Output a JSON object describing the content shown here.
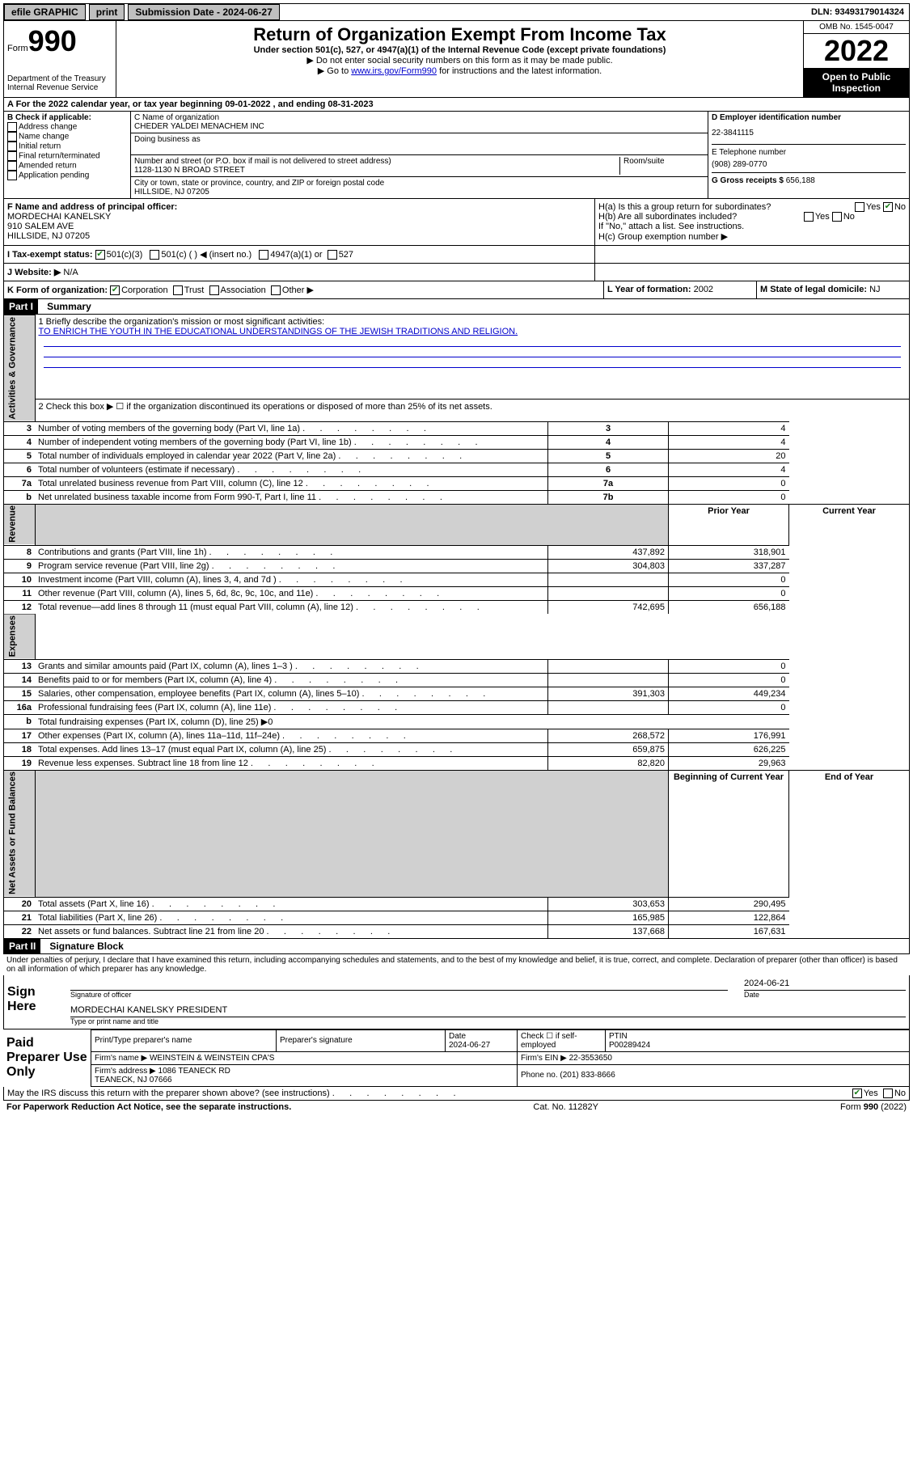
{
  "topbar": {
    "efile": "efile GRAPHIC",
    "print": "print",
    "sub_label": "Submission Date - 2024-06-27",
    "dln": "DLN: 93493179014324"
  },
  "header": {
    "form_small": "Form",
    "form_num": "990",
    "dept": "Department of the Treasury\nInternal Revenue Service",
    "title": "Return of Organization Exempt From Income Tax",
    "subtitle": "Under section 501(c), 527, or 4947(a)(1) of the Internal Revenue Code (except private foundations)",
    "note1": "▶ Do not enter social security numbers on this form as it may be made public.",
    "note2_pre": "▶ Go to ",
    "note2_link": "www.irs.gov/Form990",
    "note2_post": " for instructions and the latest information.",
    "omb": "OMB No. 1545-0047",
    "year": "2022",
    "open": "Open to Public Inspection"
  },
  "section_a": "A For the 2022 calendar year, or tax year beginning 09-01-2022    , and ending 08-31-2023",
  "col_b": {
    "label": "B Check if applicable:",
    "items": [
      "Address change",
      "Name change",
      "Initial return",
      "Final return/terminated",
      "Amended return",
      "Application pending"
    ]
  },
  "col_c": {
    "name_label": "C Name of organization",
    "name": "CHEDER YALDEI MENACHEM INC",
    "dba_label": "Doing business as",
    "addr_label": "Number and street (or P.O. box if mail is not delivered to street address)",
    "suite_label": "Room/suite",
    "addr": "1128-1130 N BROAD STREET",
    "city_label": "City or town, state or province, country, and ZIP or foreign postal code",
    "city": "HILLSIDE, NJ  07205"
  },
  "col_d": {
    "ein_label": "D Employer identification number",
    "ein": "22-3841115",
    "phone_label": "E Telephone number",
    "phone": "(908) 289-0770",
    "gross_label": "G Gross receipts $",
    "gross": "656,188"
  },
  "row_f": {
    "label": "F Name and address of principal officer:",
    "name": "MORDECHAI KANELSKY",
    "addr": "910 SALEM AVE",
    "city": "HILLSIDE, NJ  07205"
  },
  "row_h": {
    "ha": "H(a)  Is this a group return for subordinates?",
    "hb": "H(b)  Are all subordinates included?",
    "hnote": "If \"No,\" attach a list. See instructions.",
    "hc": "H(c)  Group exemption number ▶",
    "yes": "Yes",
    "no": "No"
  },
  "row_i": {
    "label": "I    Tax-exempt status:",
    "opts": [
      "501(c)(3)",
      "501(c) (  ) ◀ (insert no.)",
      "4947(a)(1) or",
      "527"
    ]
  },
  "row_j": {
    "label": "J   Website: ▶",
    "val": "N/A"
  },
  "row_k": {
    "label": "K Form of organization:",
    "opts": [
      "Corporation",
      "Trust",
      "Association",
      "Other ▶"
    ]
  },
  "row_l": {
    "label": "L Year of formation:",
    "val": "2002"
  },
  "row_m": {
    "label": "M State of legal domicile:",
    "val": "NJ"
  },
  "part1": {
    "header": "Part I",
    "title": "Summary",
    "line1_label": "1   Briefly describe the organization's mission or most significant activities:",
    "line1_val": "TO ENRICH THE YOUTH IN THE EDUCATIONAL UNDERSTANDINGS OF THE JEWISH TRADITIONS AND RELIGION.",
    "line2": "2   Check this box ▶ ☐  if the organization discontinued its operations or disposed of more than 25% of its net assets.",
    "gov_label": "Activities & Governance",
    "rev_label": "Revenue",
    "exp_label": "Expenses",
    "net_label": "Net Assets or Fund Balances",
    "prior_hdr": "Prior Year",
    "current_hdr": "Current Year",
    "begin_hdr": "Beginning of Current Year",
    "end_hdr": "End of Year",
    "rows_gov": [
      {
        "n": "3",
        "t": "Number of voting members of the governing body (Part VI, line 1a)",
        "box": "3",
        "v": "4"
      },
      {
        "n": "4",
        "t": "Number of independent voting members of the governing body (Part VI, line 1b)",
        "box": "4",
        "v": "4"
      },
      {
        "n": "5",
        "t": "Total number of individuals employed in calendar year 2022 (Part V, line 2a)",
        "box": "5",
        "v": "20"
      },
      {
        "n": "6",
        "t": "Total number of volunteers (estimate if necessary)",
        "box": "6",
        "v": "4"
      },
      {
        "n": "7a",
        "t": "Total unrelated business revenue from Part VIII, column (C), line 12",
        "box": "7a",
        "v": "0"
      },
      {
        "n": "b",
        "t": "Net unrelated business taxable income from Form 990-T, Part I, line 11",
        "box": "7b",
        "v": "0"
      }
    ],
    "rows_rev": [
      {
        "n": "8",
        "t": "Contributions and grants (Part VIII, line 1h)",
        "p": "437,892",
        "c": "318,901"
      },
      {
        "n": "9",
        "t": "Program service revenue (Part VIII, line 2g)",
        "p": "304,803",
        "c": "337,287"
      },
      {
        "n": "10",
        "t": "Investment income (Part VIII, column (A), lines 3, 4, and 7d )",
        "p": "",
        "c": "0"
      },
      {
        "n": "11",
        "t": "Other revenue (Part VIII, column (A), lines 5, 6d, 8c, 9c, 10c, and 11e)",
        "p": "",
        "c": "0"
      },
      {
        "n": "12",
        "t": "Total revenue—add lines 8 through 11 (must equal Part VIII, column (A), line 12)",
        "p": "742,695",
        "c": "656,188"
      }
    ],
    "rows_exp": [
      {
        "n": "13",
        "t": "Grants and similar amounts paid (Part IX, column (A), lines 1–3 )",
        "p": "",
        "c": "0"
      },
      {
        "n": "14",
        "t": "Benefits paid to or for members (Part IX, column (A), line 4)",
        "p": "",
        "c": "0"
      },
      {
        "n": "15",
        "t": "Salaries, other compensation, employee benefits (Part IX, column (A), lines 5–10)",
        "p": "391,303",
        "c": "449,234"
      },
      {
        "n": "16a",
        "t": "Professional fundraising fees (Part IX, column (A), line 11e)",
        "p": "",
        "c": "0"
      },
      {
        "n": "b",
        "t": "Total fundraising expenses (Part IX, column (D), line 25) ▶0",
        "p": "—",
        "c": "—"
      },
      {
        "n": "17",
        "t": "Other expenses (Part IX, column (A), lines 11a–11d, 11f–24e)",
        "p": "268,572",
        "c": "176,991"
      },
      {
        "n": "18",
        "t": "Total expenses. Add lines 13–17 (must equal Part IX, column (A), line 25)",
        "p": "659,875",
        "c": "626,225"
      },
      {
        "n": "19",
        "t": "Revenue less expenses. Subtract line 18 from line 12",
        "p": "82,820",
        "c": "29,963"
      }
    ],
    "rows_net": [
      {
        "n": "20",
        "t": "Total assets (Part X, line 16)",
        "p": "303,653",
        "c": "290,495"
      },
      {
        "n": "21",
        "t": "Total liabilities (Part X, line 26)",
        "p": "165,985",
        "c": "122,864"
      },
      {
        "n": "22",
        "t": "Net assets or fund balances. Subtract line 21 from line 20",
        "p": "137,668",
        "c": "167,631"
      }
    ]
  },
  "part2": {
    "header": "Part II",
    "title": "Signature Block",
    "penalty": "Under penalties of perjury, I declare that I have examined this return, including accompanying schedules and statements, and to the best of my knowledge and belief, it is true, correct, and complete. Declaration of preparer (other than officer) is based on all information of which preparer has any knowledge.",
    "sign_here": "Sign Here",
    "sig_officer": "Signature of officer",
    "date_label": "Date",
    "sig_date": "2024-06-21",
    "officer_name": "MORDECHAI KANELSKY PRESIDENT",
    "type_name": "Type or print name and title",
    "paid": "Paid Preparer Use Only",
    "prep_name_label": "Print/Type preparer's name",
    "prep_sig_label": "Preparer's signature",
    "prep_date": "Date\n2024-06-27",
    "self_emp": "Check ☐ if self-employed",
    "ptin_label": "PTIN",
    "ptin": "P00289424",
    "firm_name_label": "Firm's name    ▶",
    "firm_name": "WEINSTEIN & WEINSTEIN CPA'S",
    "firm_ein_label": "Firm's EIN ▶",
    "firm_ein": "22-3553650",
    "firm_addr_label": "Firm's address ▶",
    "firm_addr": "1086 TEANECK RD\nTEANECK, NJ 07666",
    "firm_phone_label": "Phone no.",
    "firm_phone": "(201) 833-8666",
    "discuss": "May the IRS discuss this return with the preparer shown above? (see instructions)"
  },
  "footer": {
    "left": "For Paperwork Reduction Act Notice, see the separate instructions.",
    "mid": "Cat. No. 11282Y",
    "right": "Form 990 (2022)"
  }
}
